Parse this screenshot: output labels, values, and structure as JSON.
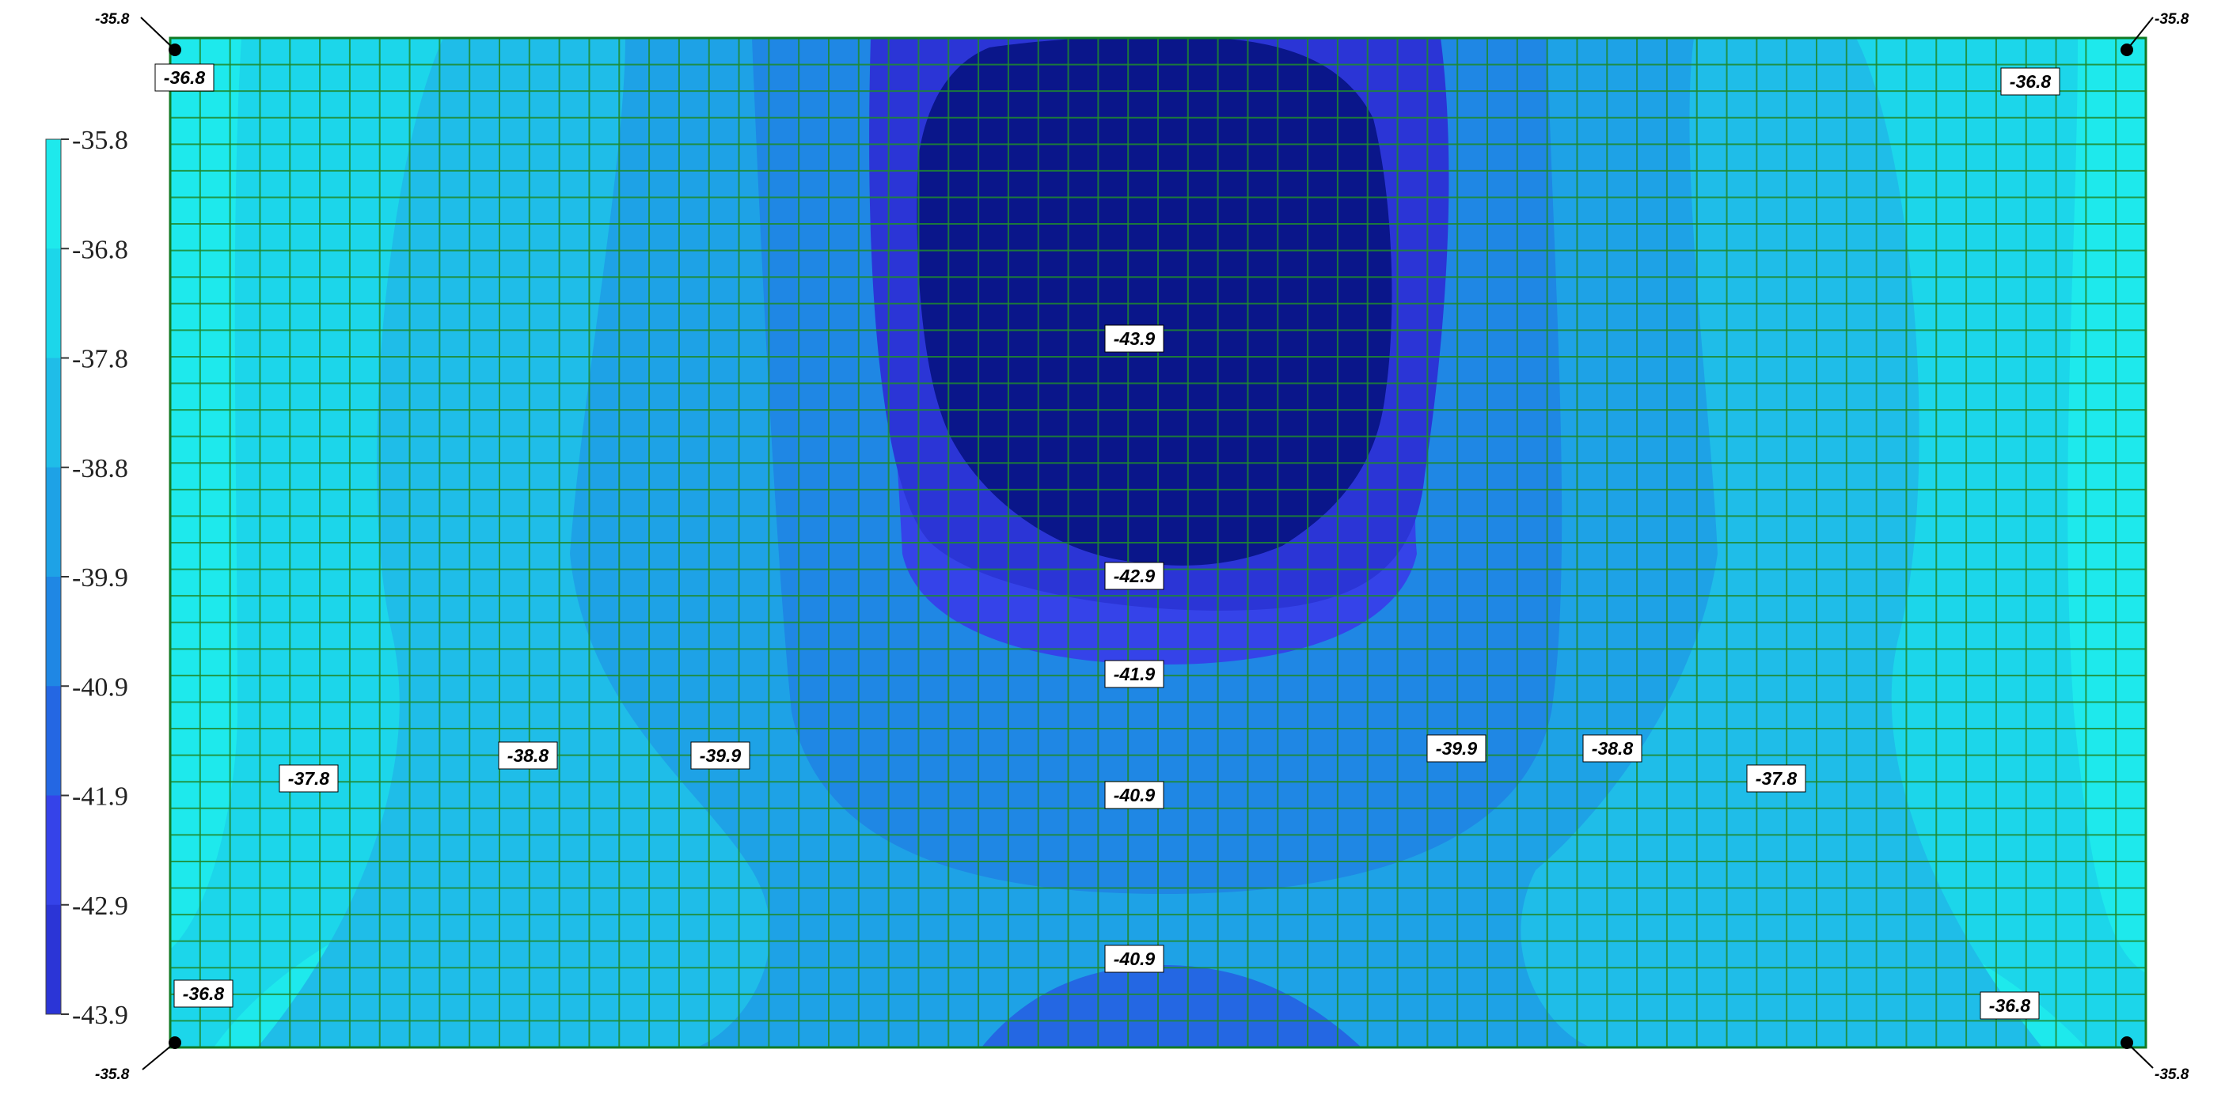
{
  "chart_data": {
    "type": "heatmap",
    "subtype": "filled-contour",
    "title": "",
    "xlabel": "",
    "ylabel": "",
    "grid": true,
    "grid_color": "#1f8a2e",
    "legend_position": "left",
    "legend": {
      "levels": [
        "-35.8",
        "-36.8",
        "-37.8",
        "-38.8",
        "-39.9",
        "-40.9",
        "-41.9",
        "-42.9",
        "-43.9"
      ],
      "colors": [
        "#1ee9ec",
        "#1cd6ea",
        "#1fbde8",
        "#1ea2e6",
        "#1f87e4",
        "#2467e3",
        "#3543e9",
        "#2b35d6",
        "#0a168a"
      ]
    },
    "contour_labels": [
      {
        "text": "-43.9",
        "level": -43.9,
        "at": "center"
      },
      {
        "text": "-42.9",
        "level": -42.9,
        "at": "center"
      },
      {
        "text": "-41.9",
        "level": -41.9,
        "at": "center"
      },
      {
        "text": "-40.9",
        "level": -40.9,
        "at": "center"
      },
      {
        "text": "-40.9",
        "level": -40.9,
        "at": "bottom-center"
      },
      {
        "text": "-37.8",
        "level": -37.8,
        "at": "left"
      },
      {
        "text": "-38.8",
        "level": -38.8,
        "at": "left"
      },
      {
        "text": "-39.9",
        "level": -39.9,
        "at": "left"
      },
      {
        "text": "-39.9",
        "level": -39.9,
        "at": "right"
      },
      {
        "text": "-38.8",
        "level": -38.8,
        "at": "right"
      },
      {
        "text": "-37.8",
        "level": -37.8,
        "at": "right"
      },
      {
        "text": "-36.8",
        "level": -36.8,
        "at": "top-left"
      },
      {
        "text": "-36.8",
        "level": -36.8,
        "at": "top-right"
      },
      {
        "text": "-36.8",
        "level": -36.8,
        "at": "bottom-left"
      },
      {
        "text": "-36.8",
        "level": -36.8,
        "at": "bottom-right"
      }
    ],
    "corner_points": [
      {
        "corner": "top-left",
        "value": "-35.8"
      },
      {
        "corner": "top-right",
        "value": "-35.8"
      },
      {
        "corner": "bottom-left",
        "value": "-35.8"
      },
      {
        "corner": "bottom-right",
        "value": "-35.8"
      }
    ]
  }
}
